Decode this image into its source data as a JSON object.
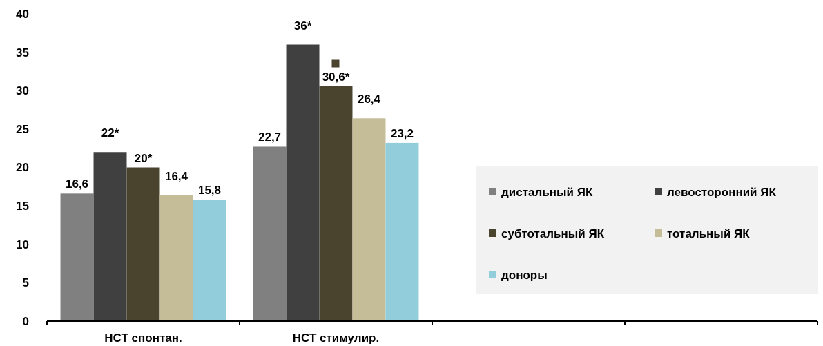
{
  "chart_data": {
    "type": "bar",
    "categories": [
      "НСТ спонтан.",
      "НСТ стимулир.",
      null,
      null
    ],
    "series": [
      {
        "name": "дистальный ЯК",
        "color": "#808080",
        "values": [
          16.6,
          22.7,
          null,
          null
        ],
        "value_labels": [
          "16,6",
          "22,7",
          null,
          null
        ]
      },
      {
        "name": "левосторонний ЯК",
        "color": "#404040",
        "values": [
          22,
          36,
          null,
          null
        ],
        "value_labels": [
          "22*",
          "36*",
          null,
          null
        ]
      },
      {
        "name": "субтотальный ЯК",
        "color": "#4a432e",
        "values": [
          20,
          30.6,
          null,
          null
        ],
        "value_labels": [
          "20*",
          "30,6*",
          null,
          null
        ]
      },
      {
        "name": "тотальный ЯК",
        "color": "#c5bd98",
        "values": [
          16.4,
          26.4,
          null,
          null
        ],
        "value_labels": [
          "16,4",
          "26,4",
          null,
          null
        ]
      },
      {
        "name": "доноры",
        "color": "#92cddc",
        "values": [
          15.8,
          23.2,
          null,
          null
        ],
        "value_labels": [
          "15,8",
          "23,2",
          null,
          null
        ]
      }
    ],
    "ylim": [
      0,
      40
    ],
    "yticks": [
      0,
      5,
      10,
      15,
      20,
      25,
      30,
      35,
      40
    ],
    "grid": false,
    "legend": "right"
  }
}
